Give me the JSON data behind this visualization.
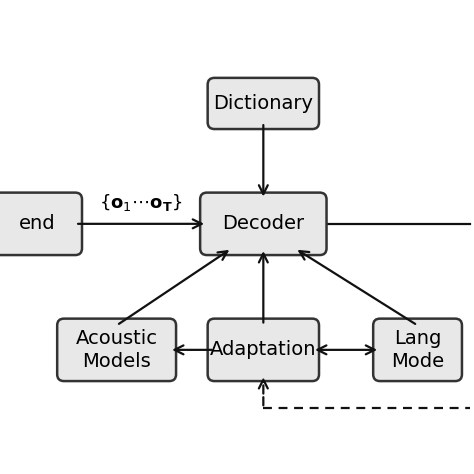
{
  "background_color": "#ffffff",
  "box_color": "#e8e8e8",
  "box_edge_color": "#333333",
  "arrow_color": "#111111",
  "font_size": 14,
  "boxes": {
    "dictionary": [
      0.52,
      0.875,
      0.26,
      0.1
    ],
    "decoder": [
      0.52,
      0.555,
      0.3,
      0.13
    ],
    "acoustic": [
      0.13,
      0.22,
      0.28,
      0.13
    ],
    "adaptation": [
      0.52,
      0.22,
      0.26,
      0.13
    ],
    "language": [
      0.93,
      0.22,
      0.2,
      0.13
    ],
    "backend": [
      -0.08,
      0.555,
      0.2,
      0.13
    ]
  },
  "labels": {
    "dictionary": "Dictionary",
    "decoder": "Decoder",
    "acoustic": "Acoustic\nModels",
    "adaptation": "Adaptation",
    "language": "Lang\nMode",
    "backend": "end"
  },
  "xlim": [
    -0.18,
    1.08
  ],
  "ylim": [
    0.04,
    1.0
  ]
}
